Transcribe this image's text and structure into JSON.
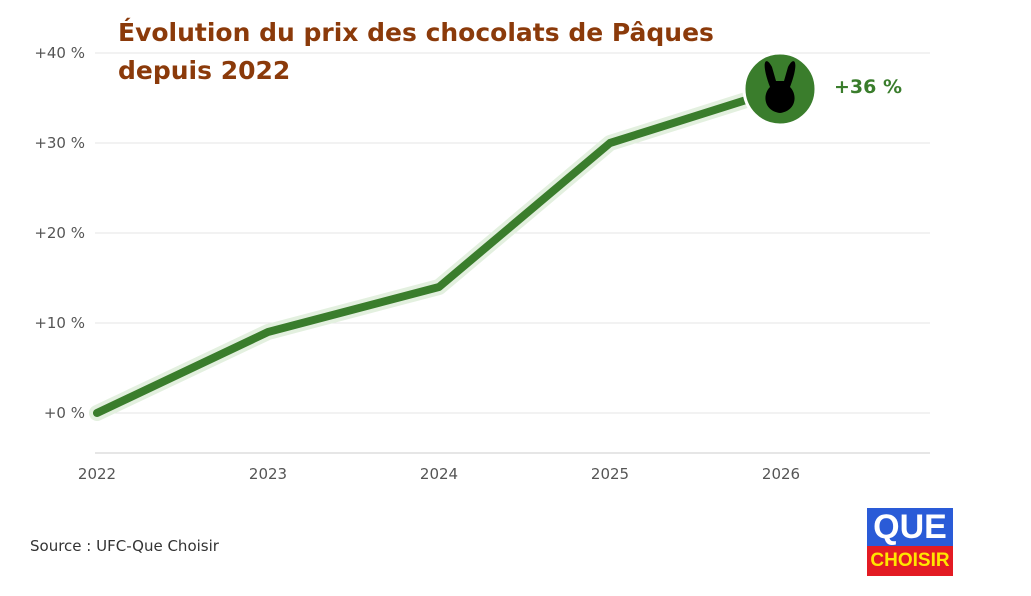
{
  "chart_data": {
    "type": "line",
    "title": "Évolution du prix des chocolats de Pâques depuis 2022",
    "title_lines": [
      "Évolution du prix des chocolats de Pâques",
      "depuis 2022"
    ],
    "x": [
      "2022",
      "2023",
      "2024",
      "2025",
      "2026"
    ],
    "series": [
      {
        "name": "Évolution du prix",
        "values": [
          0,
          9,
          14,
          30,
          36
        ],
        "color": "#3a7d2c"
      }
    ],
    "yticks": [
      0,
      10,
      20,
      30,
      40
    ],
    "ytick_labels": [
      "+0 %",
      "+10 %",
      "+20 %",
      "+30 %",
      "+40 %"
    ],
    "ylim": [
      -4.5,
      44
    ],
    "end_label": "+36 %",
    "grid": true
  },
  "source": "Source : UFC-Que Choisir",
  "logo": {
    "top": "QUE",
    "bottom": "CHOISIR"
  }
}
